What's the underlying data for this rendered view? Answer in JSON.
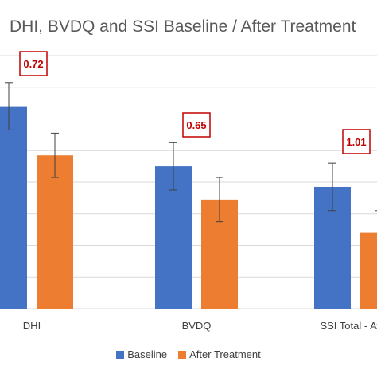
{
  "chart_data": {
    "type": "bar",
    "title": "DHI, BVDQ and SSI Baseline / After Treatment",
    "categories": [
      "DHI",
      "BVDQ",
      "SSI Total - Aver"
    ],
    "series": [
      {
        "name": "Baseline",
        "color": "#4472c4",
        "values": [
          64,
          45,
          38.5
        ],
        "error": [
          7.5,
          7.5,
          7.5
        ]
      },
      {
        "name": "After Treatment",
        "color": "#ed7d31",
        "values": [
          48.5,
          34.5,
          24
        ],
        "error": [
          7,
          7,
          7
        ]
      }
    ],
    "ylim": [
      0,
      80
    ],
    "grid": true,
    "legend_position": "bottom",
    "annotations": [
      {
        "category": "DHI",
        "text": "0.72"
      },
      {
        "category": "BVDQ",
        "text": "0.65"
      },
      {
        "category": "SSI Total - Aver",
        "text": "1.01"
      }
    ],
    "xlabel": "",
    "ylabel": ""
  }
}
